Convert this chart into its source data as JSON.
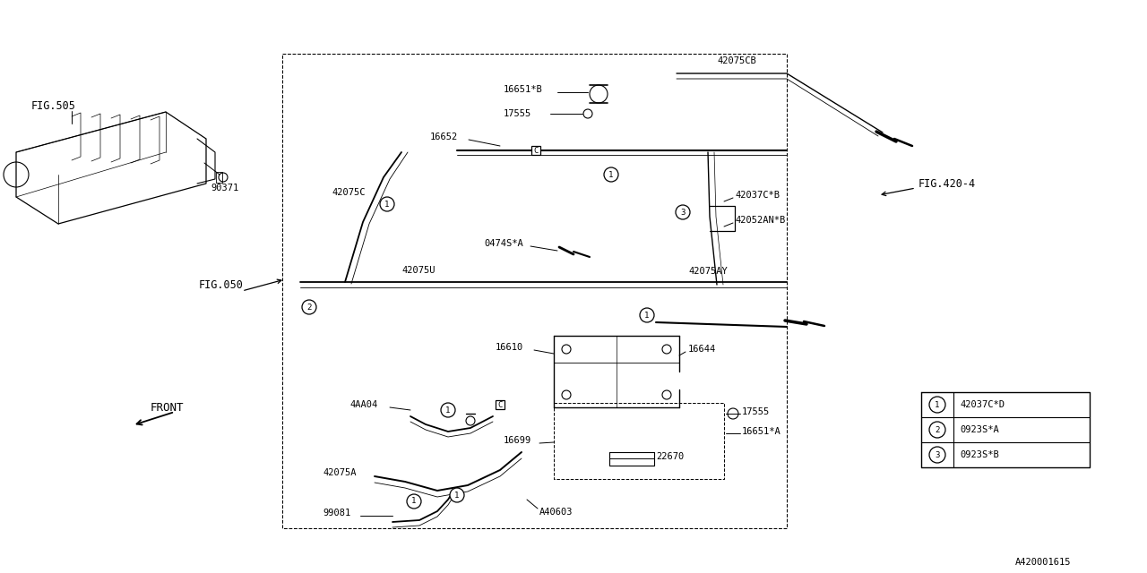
{
  "bg_color": "#ffffff",
  "line_color": "#000000",
  "legend_items": [
    {
      "num": "1",
      "code": "42037C*D"
    },
    {
      "num": "2",
      "code": "0923S*A"
    },
    {
      "num": "3",
      "code": "0923S*B"
    }
  ],
  "ref_code": "A420001615"
}
